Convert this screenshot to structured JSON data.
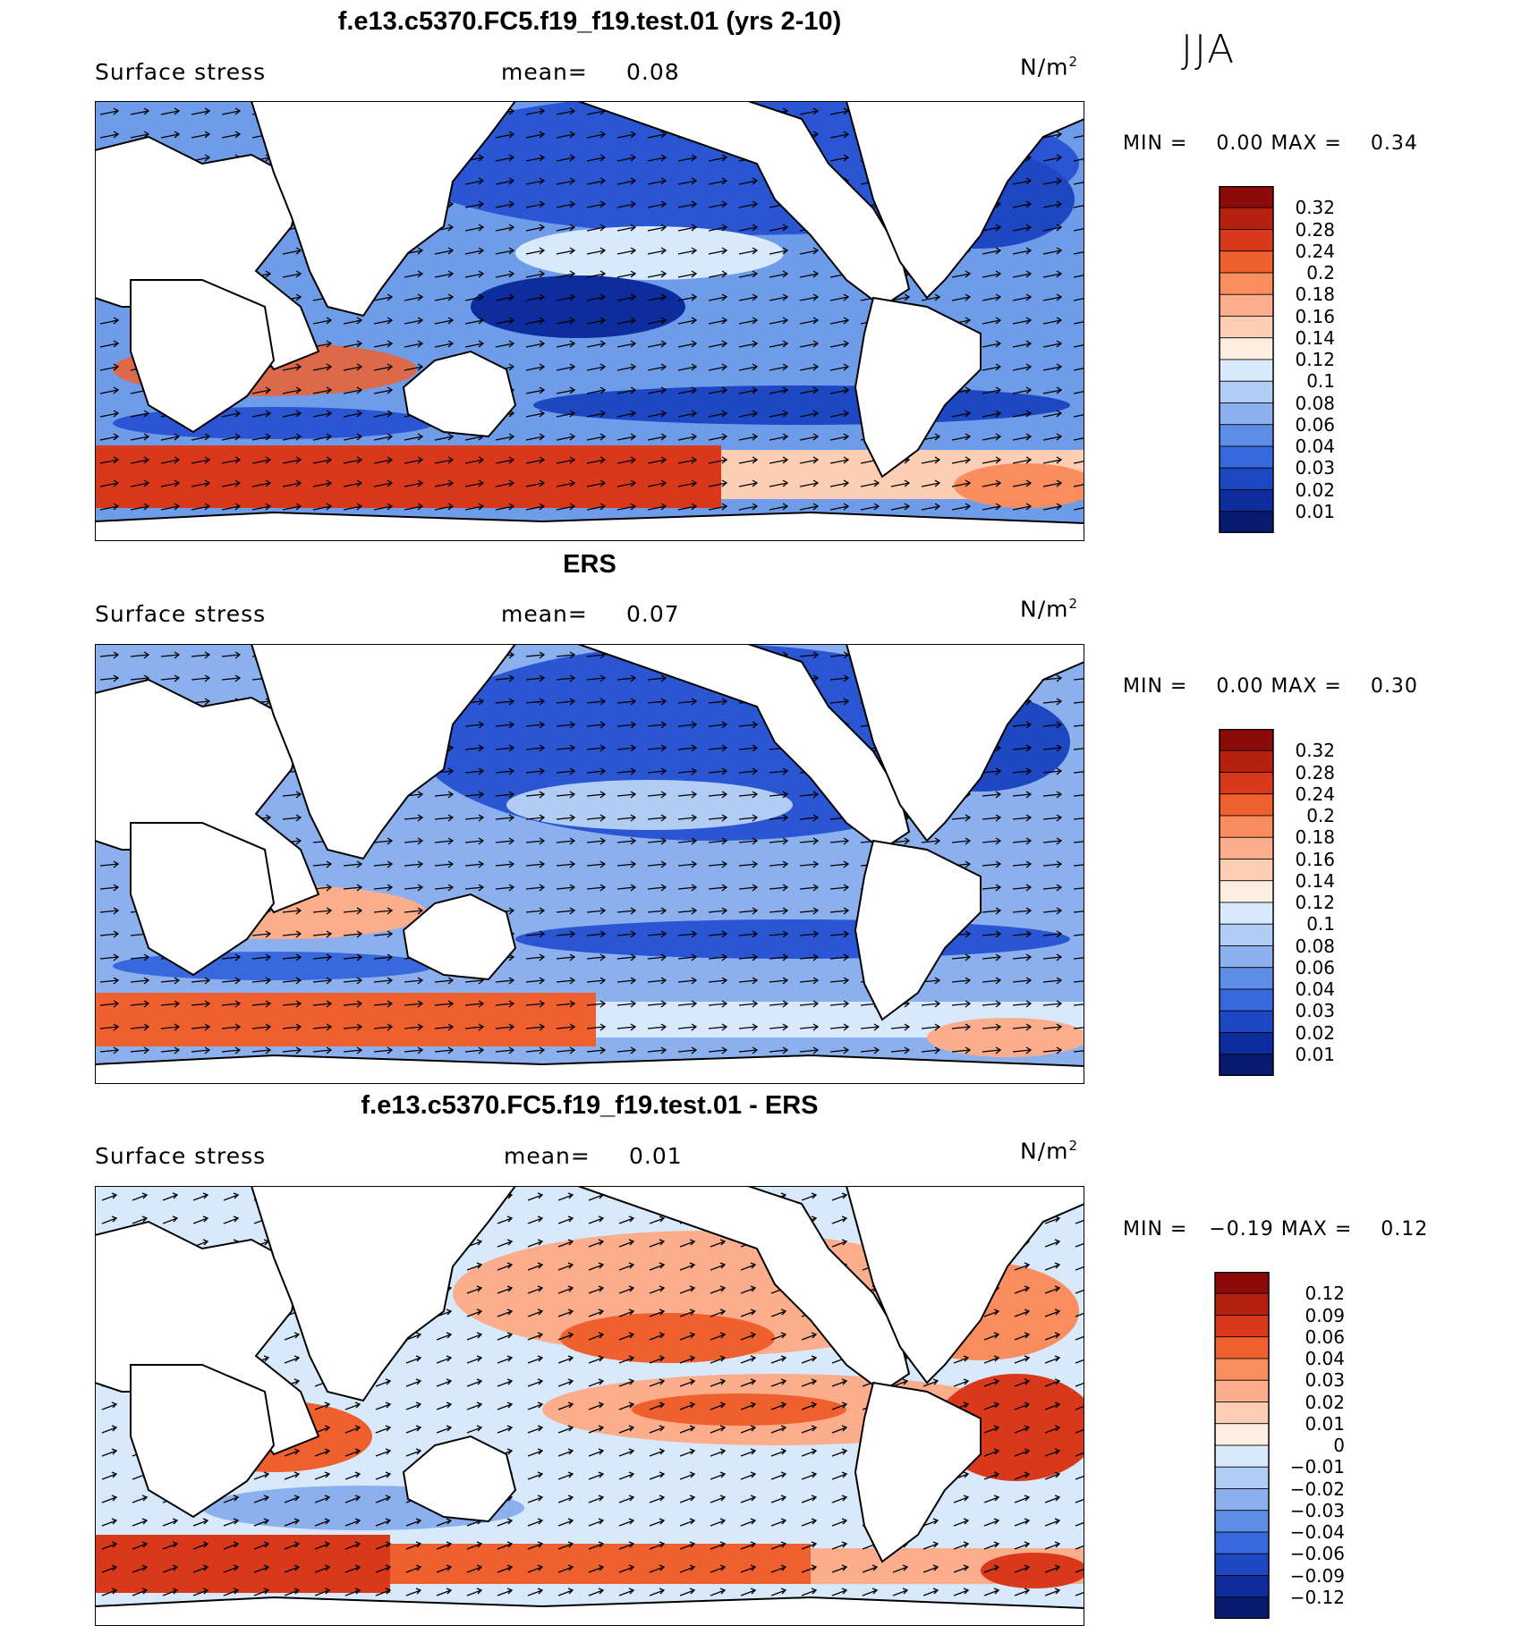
{
  "season": "JJA",
  "panels": [
    {
      "title": "f.e13.c5370.FC5.f19_f19.test.01 (yrs 2-10)",
      "variable": "Surface stress",
      "mean_label": "mean=",
      "mean_value": "0.08",
      "units": "N/m",
      "units_sup": "2",
      "min_label": "MIN =",
      "min_value": "0.00",
      "max_label": "MAX =",
      "max_value": "0.34",
      "colorbar_levels": [
        "0.32",
        "0.28",
        "0.24",
        "0.2",
        "0.18",
        "0.16",
        "0.14",
        "0.12",
        "0.1",
        "0.08",
        "0.06",
        "0.04",
        "0.03",
        "0.02",
        "0.01"
      ],
      "colorbar_colors": [
        "#8b0a0a",
        "#b5200f",
        "#d9381a",
        "#f0602e",
        "#f98d5e",
        "#fcae8c",
        "#fdcdb4",
        "#fdeee2",
        "#d7e9fb",
        "#b2cdf4",
        "#8cb0ee",
        "#5e8de6",
        "#3768dc",
        "#1e47c4",
        "#0d2d9e",
        "#071a6e"
      ]
    },
    {
      "title": "ERS",
      "variable": "Surface stress",
      "mean_label": "mean=",
      "mean_value": "0.07",
      "units": "N/m",
      "units_sup": "2",
      "min_label": "MIN =",
      "min_value": "0.00",
      "max_label": "MAX =",
      "max_value": "0.30",
      "colorbar_levels": [
        "0.32",
        "0.28",
        "0.24",
        "0.2",
        "0.18",
        "0.16",
        "0.14",
        "0.12",
        "0.1",
        "0.08",
        "0.06",
        "0.04",
        "0.03",
        "0.02",
        "0.01"
      ],
      "colorbar_colors": [
        "#8b0a0a",
        "#b5200f",
        "#d9381a",
        "#f0602e",
        "#f98d5e",
        "#fcae8c",
        "#fdcdb4",
        "#fdeee2",
        "#d7e9fb",
        "#b2cdf4",
        "#8cb0ee",
        "#5e8de6",
        "#3768dc",
        "#1e47c4",
        "#0d2d9e",
        "#071a6e"
      ]
    },
    {
      "title": "f.e13.c5370.FC5.f19_f19.test.01 - ERS",
      "variable": "Surface stress",
      "mean_label": "mean=",
      "mean_value": "0.01",
      "units": "N/m",
      "units_sup": "2",
      "min_label": "MIN =",
      "min_value": "−0.19",
      "max_label": "MAX =",
      "max_value": "0.12",
      "colorbar_levels": [
        "0.12",
        "0.09",
        "0.06",
        "0.04",
        "0.03",
        "0.02",
        "0.01",
        "0",
        "−0.01",
        "−0.02",
        "−0.03",
        "−0.04",
        "−0.06",
        "−0.09",
        "−0.12"
      ],
      "colorbar_colors": [
        "#8b0a0a",
        "#b5200f",
        "#d9381a",
        "#f0602e",
        "#f98d5e",
        "#fcae8c",
        "#fdcdb4",
        "#fdeee2",
        "#d7e9fb",
        "#b2cdf4",
        "#8cb0ee",
        "#5e8de6",
        "#3768dc",
        "#1e47c4",
        "#0d2d9e",
        "#071a6e"
      ]
    }
  ]
}
